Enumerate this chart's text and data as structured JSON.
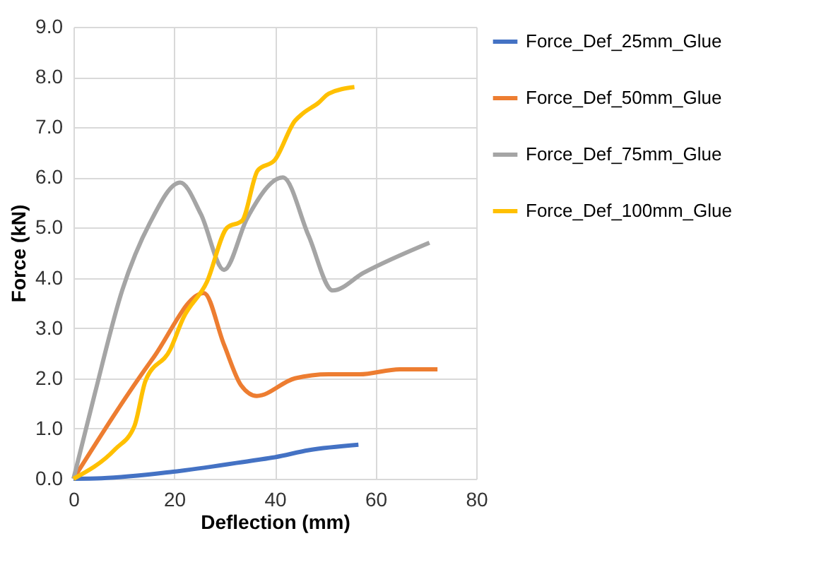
{
  "chart_data": {
    "type": "line",
    "xlabel": "Deflection (mm)",
    "ylabel": "Force (kN)",
    "xlim": [
      0,
      80
    ],
    "xticks": [
      0,
      20,
      40,
      60,
      80
    ],
    "ylim": [
      0,
      9
    ],
    "yticks": [
      {
        "value": 0,
        "label": "0.0"
      },
      {
        "value": 1,
        "label": "1.0"
      },
      {
        "value": 2,
        "label": "2.0"
      },
      {
        "value": 3,
        "label": "3.0"
      },
      {
        "value": 4,
        "label": "4.0"
      },
      {
        "value": 5,
        "label": "5.0"
      },
      {
        "value": 6,
        "label": "6.0"
      },
      {
        "value": 7,
        "label": "7.0"
      },
      {
        "value": 8,
        "label": "8.0"
      },
      {
        "value": 9,
        "label": "9.0"
      }
    ],
    "grid": true,
    "legend": "right",
    "marker": "none",
    "line_style": "solid",
    "series": [
      {
        "name": "Force_Def_25mm_Glue",
        "color": "#4472c4",
        "x": [
          0,
          5.6,
          19.8,
          36,
          40,
          46.7,
          56.6
        ],
        "values": [
          0,
          0.01,
          0.14,
          0.37,
          0.43,
          0.57,
          0.68
        ]
      },
      {
        "name": "Force_Def_50mm_Glue",
        "color": "#ed7d31",
        "x": [
          0,
          15.8,
          25.9,
          29.9,
          33.3,
          36.4,
          44,
          50.7,
          56.8,
          64.8,
          72.3
        ],
        "values": [
          0,
          2.4,
          3.7,
          2.67,
          1.86,
          1.65,
          2.0,
          2.08,
          2.08,
          2.18,
          2.18
        ]
      },
      {
        "name": "Force_Def_75mm_Glue",
        "color": "#a5a5a5",
        "x": [
          0,
          4.2,
          9.7,
          15.2,
          21.2,
          25.3,
          29.9,
          34.5,
          41.6,
          46.7,
          51.5,
          57.6,
          70.7
        ],
        "values": [
          0,
          1.68,
          3.76,
          5.1,
          5.9,
          5.27,
          4.16,
          5.19,
          6.0,
          4.84,
          3.75,
          4.1,
          4.7
        ]
      },
      {
        "name": "Force_Def_100mm_Glue",
        "color": "#ffc000",
        "x": [
          0,
          8.3,
          12.1,
          14.3,
          19.2,
          21.8,
          26.5,
          30.5,
          33.5,
          36.6,
          40,
          44,
          45.5,
          48.7,
          50.7,
          55.8
        ],
        "values": [
          0,
          0.59,
          1.05,
          1.95,
          2.57,
          3.2,
          3.92,
          5.0,
          5.14,
          6.14,
          6.35,
          7.13,
          7.27,
          7.49,
          7.67,
          7.8
        ]
      }
    ]
  }
}
